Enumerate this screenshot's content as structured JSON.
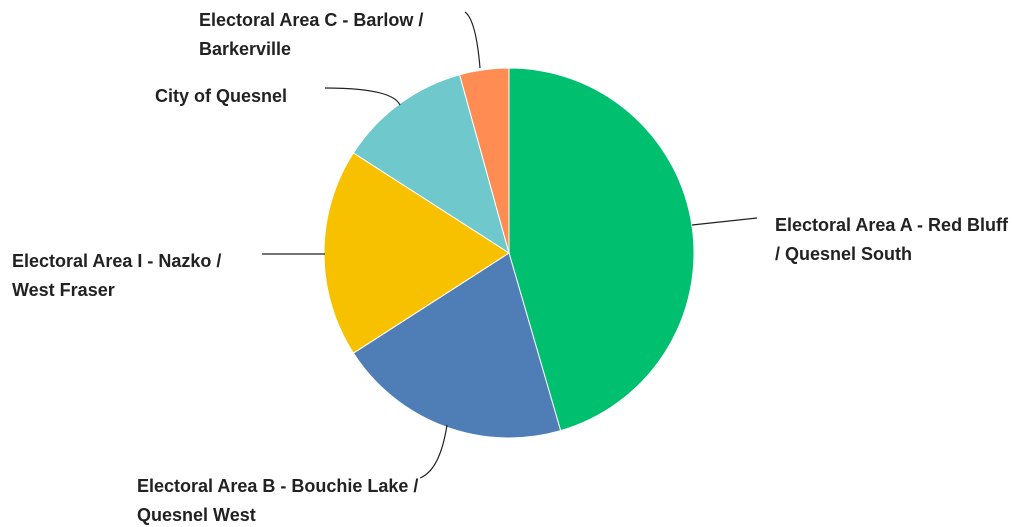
{
  "chart_data": {
    "type": "pie",
    "categories": [
      "Electoral Area A - Red Bluff / Quesnel South",
      "Electoral Area B - Bouchie Lake / Quesnel West",
      "Electoral Area I - Nazko / West Fraser",
      "City of Quesnel",
      "Electoral Area C - Barlow / Barkerville"
    ],
    "values": [
      45.5,
      20.4,
      18.2,
      11.6,
      4.3
    ],
    "colors": [
      "#00c070",
      "#4f7db6",
      "#f7c100",
      "#6fc8cc",
      "#ff8c52"
    ]
  }
}
